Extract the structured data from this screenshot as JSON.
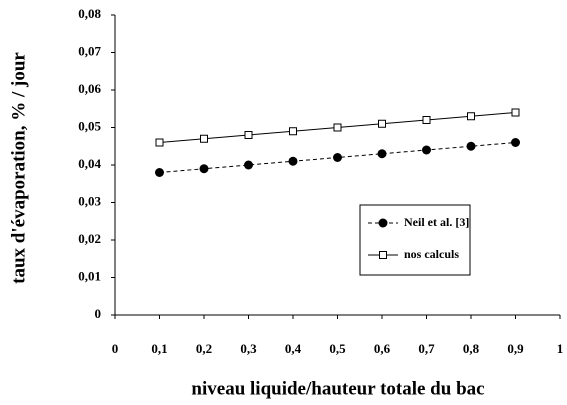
{
  "chart_data": {
    "type": "line",
    "xlabel": "niveau liquide/hauteur totale du bac",
    "ylabel": "taux d'évaporation, % / jour",
    "x": [
      0.1,
      0.2,
      0.3,
      0.4,
      0.5,
      0.6,
      0.7,
      0.8,
      0.9
    ],
    "series": [
      {
        "name": "Neil et al. [3]",
        "color": "#000000",
        "dash": true,
        "marker": "circle",
        "values": [
          0.038,
          0.039,
          0.04,
          0.041,
          0.042,
          0.043,
          0.044,
          0.045,
          0.046
        ]
      },
      {
        "name": "nos calculs",
        "color": "#000000",
        "dash": false,
        "marker": "square",
        "values": [
          0.046,
          0.047,
          0.048,
          0.049,
          0.05,
          0.051,
          0.052,
          0.053,
          0.054
        ]
      }
    ],
    "xlim": [
      0,
      1
    ],
    "xticks": [
      0,
      {
        "value": 0.1,
        "label": "0,1"
      },
      {
        "value": 0.2,
        "label": "0,2"
      },
      {
        "value": 0.3,
        "label": "0,3"
      },
      {
        "value": 0.4,
        "label": "0,4"
      },
      {
        "value": 0.5,
        "label": "0,5"
      },
      {
        "value": 0.6,
        "label": "0,6"
      },
      {
        "value": 0.7,
        "label": "0,7"
      },
      {
        "value": 0.8,
        "label": "0,8"
      },
      {
        "value": 0.9,
        "label": "0,9"
      },
      1
    ],
    "ylim": [
      0,
      0.08
    ],
    "yticks": [
      0,
      {
        "value": 0.01,
        "label": "0,01"
      },
      {
        "value": 0.02,
        "label": "0,02"
      },
      {
        "value": 0.03,
        "label": "0,03"
      },
      {
        "value": 0.04,
        "label": "0,04"
      },
      {
        "value": 0.05,
        "label": "0,05"
      },
      {
        "value": 0.06,
        "label": "0,06"
      },
      {
        "value": 0.07,
        "label": "0,07"
      },
      {
        "value": 0.08,
        "label": "0,08"
      }
    ],
    "grid": false,
    "legend": "right"
  }
}
